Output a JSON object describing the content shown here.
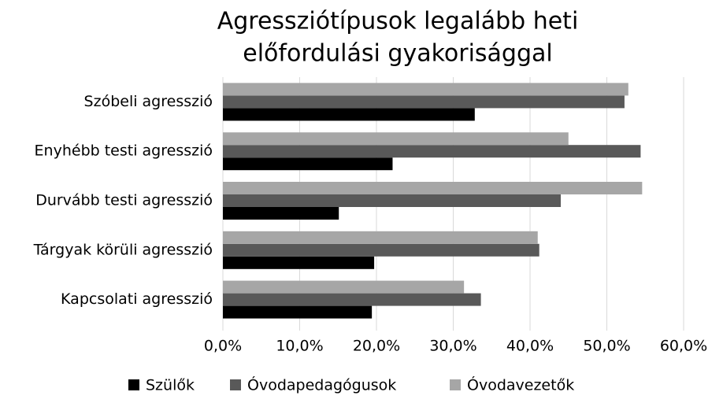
{
  "chart_data": {
    "type": "hbar",
    "title_lines": [
      "Agressziótípusok legalább heti",
      "előfordulási gyakorisággal"
    ],
    "categories": [
      "Szóbeli agresszió",
      "Enyhébb testi agresszió",
      "Durvább testi agresszió",
      "Tárgyak körüli agresszió",
      "Kapcsolati agresszió"
    ],
    "series": [
      {
        "name": "Szülők",
        "color": "#000000",
        "values": [
          32.8,
          22.1,
          15.1,
          19.7,
          19.4
        ]
      },
      {
        "name": "Óvodapedagógusok",
        "color": "#595959",
        "values": [
          52.3,
          54.4,
          44.0,
          41.2,
          33.6
        ]
      },
      {
        "name": "Óvodavezetők",
        "color": "#a6a6a6",
        "values": [
          52.8,
          45.0,
          54.6,
          41.0,
          31.4
        ]
      }
    ],
    "xlim": [
      0,
      60
    ],
    "xticks": [
      {
        "value": 0,
        "label": "0,0%"
      },
      {
        "value": 10,
        "label": "10,0%"
      },
      {
        "value": 20,
        "label": "20,0%"
      },
      {
        "value": 30,
        "label": "30,0%"
      },
      {
        "value": 40,
        "label": "40,0%"
      },
      {
        "value": 50,
        "label": "50,0%"
      },
      {
        "value": 60,
        "label": "60,0%"
      }
    ],
    "grid": true,
    "legend": "bottom"
  }
}
